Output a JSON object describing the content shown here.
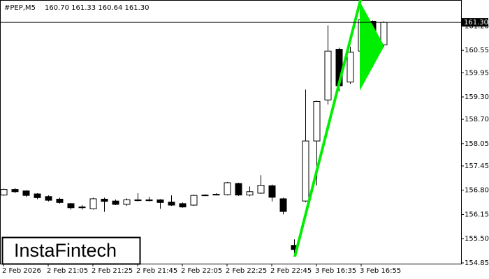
{
  "chart_data": {
    "type": "candlestick",
    "title": "#PEP,M5",
    "ohlc_label": "160.70 161.33 160.64 161.30",
    "brand": "InstaFintech",
    "categories": [
      "2 Feb 2026",
      null,
      null,
      null,
      "2 Feb 21:05",
      null,
      null,
      null,
      "2 Feb 21:25",
      null,
      null,
      null,
      "2 Feb 21:45",
      null,
      null,
      null,
      "2 Feb 22:05",
      null,
      null,
      null,
      "2 Feb 22:25",
      null,
      null,
      null,
      "2 Feb 22:45",
      null,
      null,
      null,
      "3 Feb 16:35",
      null,
      null,
      null,
      "3 Feb 16:55",
      null,
      null
    ],
    "open": [
      156.67,
      156.82,
      156.78,
      156.7,
      156.63,
      156.56,
      156.44,
      156.34,
      156.3,
      156.56,
      156.51,
      156.42,
      156.53,
      156.54,
      156.54,
      156.48,
      156.44,
      156.4,
      156.66,
      156.67,
      156.68,
      156.98,
      156.67,
      156.72,
      156.92,
      156.57,
      155.32,
      156.51,
      158.12,
      159.22,
      160.58,
      159.7,
      160.53,
      161.33,
      160.7
    ],
    "high": [
      156.84,
      156.86,
      156.8,
      156.72,
      156.66,
      156.6,
      156.46,
      156.4,
      156.6,
      156.6,
      156.55,
      156.58,
      156.72,
      156.62,
      156.56,
      156.66,
      156.47,
      156.68,
      156.69,
      156.72,
      157.02,
      157.0,
      156.9,
      157.2,
      156.95,
      156.6,
      155.48,
      159.5,
      159.2,
      161.22,
      160.62,
      160.65,
      161.42,
      161.35,
      161.33
    ],
    "low": [
      156.65,
      156.72,
      156.62,
      156.56,
      156.5,
      156.44,
      156.28,
      156.28,
      156.28,
      156.22,
      156.4,
      156.38,
      156.5,
      156.5,
      156.3,
      156.38,
      156.33,
      156.38,
      156.64,
      156.66,
      156.66,
      156.65,
      156.64,
      156.7,
      156.5,
      156.15,
      155.1,
      156.48,
      156.93,
      159.1,
      159.45,
      159.65,
      160.48,
      160.1,
      160.64
    ],
    "close": [
      156.82,
      156.76,
      156.66,
      156.6,
      156.53,
      156.47,
      156.33,
      156.35,
      156.57,
      156.5,
      156.42,
      156.54,
      156.54,
      156.52,
      156.47,
      156.4,
      156.35,
      156.66,
      156.67,
      156.69,
      157.0,
      156.67,
      156.76,
      156.93,
      156.61,
      156.23,
      155.21,
      158.12,
      159.18,
      160.53,
      159.6,
      160.5,
      161.37,
      160.63,
      161.3
    ],
    "up_color": "#ffffff",
    "down_color": "#000000",
    "pattern_color": "#00ee00",
    "ylim": [
      154.83,
      161.9
    ],
    "yticks": [
      {
        "value": 161.2,
        "label": "161.20"
      },
      160.55,
      159.95,
      {
        "value": 159.3,
        "label": "159.30"
      },
      {
        "value": 158.7,
        "label": "158.70"
      },
      158.05,
      157.45,
      {
        "value": 156.8,
        "label": "156.80"
      },
      156.15,
      {
        "value": 155.5,
        "label": "155.50"
      },
      154.85
    ],
    "last_price": {
      "value": 161.3,
      "label": "161.30"
    }
  }
}
